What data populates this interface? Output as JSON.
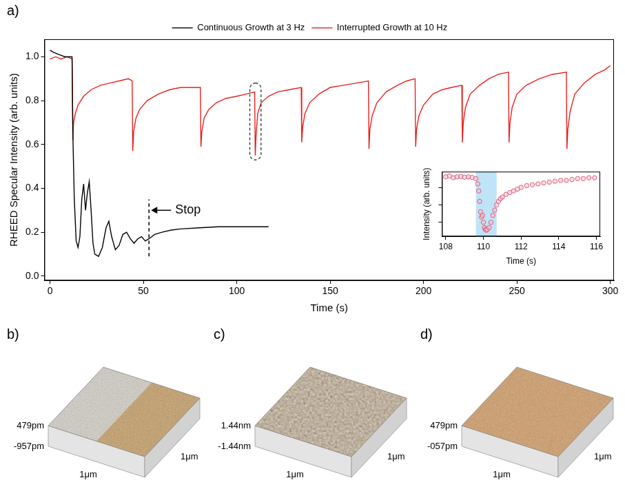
{
  "chart_data": [
    {
      "type": "line",
      "panel_label": "a)",
      "x_label": "Time (s)",
      "y_label": "RHEED Specular Intensity (arb. units)",
      "xlim": [
        -3,
        302
      ],
      "xticks": [
        0,
        50,
        100,
        150,
        200,
        250,
        300
      ],
      "ylim": [
        -0.02,
        1.08
      ],
      "yticks": [
        {
          "value": 0,
          "label": "0.0"
        },
        0.2,
        0.4,
        0.6,
        0.8,
        {
          "value": 1,
          "label": "1.0"
        }
      ],
      "grid": false,
      "legend": "top",
      "series": [
        {
          "name": "Continuous Growth at 3 Hz",
          "color": "#000000",
          "x": [
            0,
            2,
            5,
            8,
            11.8,
            12.3,
            13,
            14,
            15,
            16,
            17,
            18,
            19,
            20,
            21,
            22,
            23,
            24,
            26,
            28,
            30,
            31.5,
            33,
            35,
            37,
            39,
            41,
            43,
            45,
            47,
            49,
            51,
            53,
            56,
            60,
            65,
            70,
            80,
            90,
            100,
            110,
            117
          ],
          "values": [
            1.03,
            1.02,
            1.01,
            1.0,
            1.0,
            0.62,
            0.35,
            0.16,
            0.13,
            0.18,
            0.35,
            0.42,
            0.3,
            0.38,
            0.43,
            0.3,
            0.15,
            0.1,
            0.09,
            0.13,
            0.22,
            0.25,
            0.18,
            0.12,
            0.14,
            0.19,
            0.2,
            0.17,
            0.15,
            0.17,
            0.18,
            0.16,
            0.17,
            0.19,
            0.2,
            0.21,
            0.215,
            0.22,
            0.225,
            0.225,
            0.225,
            0.225
          ]
        },
        {
          "name": "Interrupted Growth at 10 Hz",
          "color": "#e8201c",
          "x": [
            0,
            3,
            6,
            9,
            11.8,
            12.2,
            12.6,
            13.5,
            15,
            18,
            22,
            27,
            32,
            37,
            42,
            44,
            44.3,
            44.8,
            46,
            48,
            52,
            58,
            64,
            70,
            76,
            80.5,
            80.8,
            81.3,
            82.5,
            85,
            89,
            94,
            100,
            105,
            109.6,
            109.9,
            110.4,
            111.2,
            113,
            117,
            122,
            128,
            134.5,
            134.8,
            135.3,
            136.5,
            139,
            144,
            150,
            157,
            164,
            170.5,
            170.8,
            171.3,
            172.5,
            175,
            180,
            186,
            191,
            195.5,
            195.8,
            196.3,
            197.5,
            200,
            205,
            210,
            215,
            220.5,
            220.8,
            221.3,
            222.5,
            225,
            230,
            235,
            240,
            245.5,
            245.8,
            246.3,
            247.5,
            250,
            255,
            262,
            269,
            276.5,
            276.8,
            277.3,
            278.5,
            281,
            286,
            292,
            297,
            300
          ],
          "values": [
            0.99,
            1.0,
            0.99,
            1.0,
            0.99,
            0.62,
            0.7,
            0.74,
            0.78,
            0.82,
            0.85,
            0.87,
            0.88,
            0.89,
            0.9,
            0.89,
            0.57,
            0.66,
            0.72,
            0.76,
            0.8,
            0.83,
            0.85,
            0.86,
            0.86,
            0.86,
            0.59,
            0.66,
            0.72,
            0.76,
            0.79,
            0.81,
            0.82,
            0.83,
            0.84,
            0.55,
            0.65,
            0.74,
            0.79,
            0.82,
            0.84,
            0.85,
            0.86,
            0.61,
            0.68,
            0.74,
            0.79,
            0.83,
            0.86,
            0.87,
            0.88,
            0.89,
            0.58,
            0.67,
            0.73,
            0.79,
            0.84,
            0.87,
            0.89,
            0.9,
            0.59,
            0.67,
            0.73,
            0.78,
            0.83,
            0.85,
            0.86,
            0.87,
            0.61,
            0.7,
            0.77,
            0.83,
            0.87,
            0.9,
            0.92,
            0.93,
            0.61,
            0.7,
            0.77,
            0.83,
            0.87,
            0.9,
            0.92,
            0.93,
            0.58,
            0.67,
            0.75,
            0.83,
            0.88,
            0.92,
            0.94,
            0.96
          ]
        }
      ],
      "annotations": [
        {
          "text": "Stop",
          "x": 53,
          "y": 0.3,
          "line_y": [
            0.09,
            0.35
          ]
        }
      ],
      "highlight_box": {
        "x": [
          107,
          113
        ],
        "y": [
          0.53,
          0.88
        ]
      }
    },
    {
      "type": "scatter",
      "x_label": "Time (s)",
      "y_label": "Intensity (arb. units)",
      "xlim": [
        107.8,
        116.2
      ],
      "xticks": [
        108,
        110,
        112,
        114,
        116
      ],
      "ylim": [
        0.52,
        0.89
      ],
      "yticks": [
        0.6,
        0.7,
        0.8
      ],
      "tick_labels": "x",
      "grid": false,
      "marker": "circle",
      "color": "#d9607a",
      "series": [
        {
          "x": [
            108.0,
            108.2,
            108.4,
            108.6,
            108.8,
            109.0,
            109.2,
            109.4,
            109.6,
            109.7,
            109.75,
            109.8,
            109.85,
            109.9,
            109.95,
            110.0,
            110.05,
            110.1,
            110.15,
            110.2,
            110.3,
            110.4,
            110.5,
            110.6,
            110.7,
            110.8,
            110.9,
            111.0,
            111.2,
            111.4,
            111.6,
            111.8,
            112.0,
            112.3,
            112.6,
            112.9,
            113.2,
            113.5,
            113.8,
            114.1,
            114.4,
            114.7,
            115.0,
            115.3,
            115.6,
            115.9
          ],
          "values": [
            0.86,
            0.865,
            0.855,
            0.86,
            0.862,
            0.858,
            0.86,
            0.857,
            0.85,
            0.82,
            0.78,
            0.72,
            0.66,
            0.63,
            0.64,
            0.6,
            0.57,
            0.56,
            0.555,
            0.56,
            0.57,
            0.6,
            0.64,
            0.67,
            0.7,
            0.72,
            0.735,
            0.745,
            0.76,
            0.77,
            0.78,
            0.79,
            0.8,
            0.81,
            0.815,
            0.82,
            0.825,
            0.83,
            0.835,
            0.84,
            0.84,
            0.845,
            0.85,
            0.85,
            0.855,
            0.855
          ]
        }
      ],
      "highlight": {
        "x": [
          109.6,
          110.7
        ]
      }
    }
  ],
  "panels": [
    {
      "label": "b)",
      "z_labels": [
        "479pm",
        "-957pm"
      ],
      "x_label": "1μm",
      "y_label": "1μm"
    },
    {
      "label": "c)",
      "z_labels": [
        "1.44nm",
        "-1.44nm"
      ],
      "x_label": "1μm",
      "y_label": "1μm"
    },
    {
      "label": "d)",
      "z_labels": [
        "479pm",
        "-057pm"
      ],
      "x_label": "1μm",
      "y_label": "1μm"
    }
  ]
}
